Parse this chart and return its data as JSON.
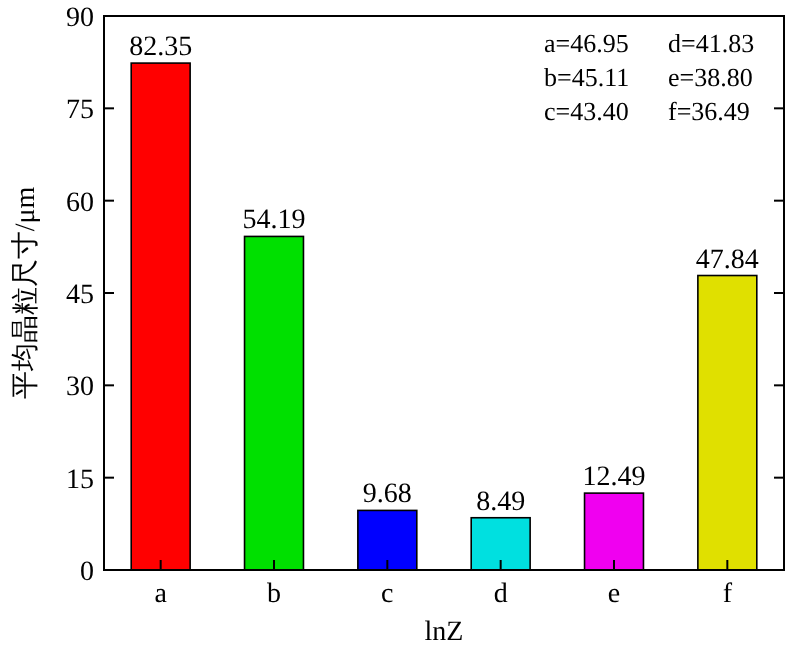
{
  "chart_data": {
    "type": "bar",
    "xlabel": "lnZ",
    "ylabel": "平均晶粒尺寸/μm",
    "categories": [
      "a",
      "b",
      "c",
      "d",
      "e",
      "f"
    ],
    "values": [
      82.35,
      54.19,
      9.68,
      8.49,
      12.49,
      47.84
    ],
    "colors": [
      "#ff0000",
      "#00e000",
      "#0000ff",
      "#00e0e0",
      "#f000f0",
      "#e0e000"
    ],
    "ylim": [
      0,
      90
    ],
    "yticks": [
      0,
      15,
      30,
      45,
      60,
      75,
      90
    ],
    "data_labels": true,
    "annotations": [
      "a=46.95",
      "b=45.11",
      "c=43.40",
      "d=41.83",
      "e=38.80",
      "f=36.49"
    ]
  }
}
